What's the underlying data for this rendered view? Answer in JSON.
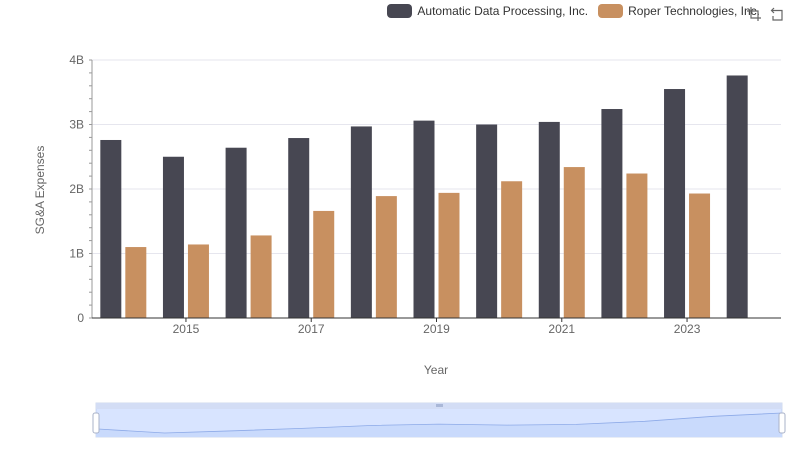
{
  "legend": {
    "items": [
      {
        "name": "Automatic Data Processing, Inc.",
        "color": "#474752"
      },
      {
        "name": "Roper Technologies, Inc.",
        "color": "#c89060"
      }
    ]
  },
  "toolbox": {
    "icons": [
      "zoom-icon",
      "restore-icon"
    ]
  },
  "chart_data": {
    "type": "bar",
    "categories": [
      "2014",
      "2015",
      "2016",
      "2017",
      "2018",
      "2019",
      "2020",
      "2021",
      "2022",
      "2023",
      "2024"
    ],
    "x_tick_labels": [
      "2015",
      "2017",
      "2019",
      "2021",
      "2023"
    ],
    "xlabel": "Year",
    "ylabel": "SG&A Expenses",
    "ylim": [
      0,
      4000000000
    ],
    "y_tick_labels": [
      "0",
      "1B",
      "2B",
      "3B",
      "4B"
    ],
    "series": [
      {
        "name": "Automatic Data Processing, Inc.",
        "color": "#474752",
        "values": [
          2760000000,
          2500000000,
          2640000000,
          2790000000,
          2970000000,
          3060000000,
          3000000000,
          3040000000,
          3240000000,
          3550000000,
          3760000000
        ]
      },
      {
        "name": "Roper Technologies, Inc.",
        "color": "#c89060",
        "values": [
          1100000000,
          1140000000,
          1280000000,
          1660000000,
          1890000000,
          1940000000,
          2120000000,
          2340000000,
          2240000000,
          1930000000,
          null
        ]
      }
    ],
    "grid": true,
    "legend_position": "top-right",
    "data_zoom": {
      "start": 0,
      "end": 100
    }
  }
}
